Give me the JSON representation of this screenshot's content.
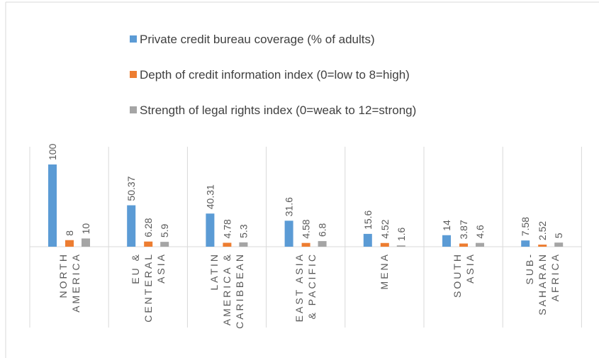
{
  "chart_data": {
    "type": "bar",
    "categories": [
      "NORTH AMERICA",
      "EU & CENTERAL ASIA",
      "LATIN AMERICA & CARIBBEAN",
      "EAST ASIA & PACIFIC",
      "MENA",
      "SOUTH ASIA",
      "SUB-SAHARAN AFRICA"
    ],
    "series": [
      {
        "name": "Private credit bureau coverage (% of adults)",
        "color": "#5b9bd5",
        "values": [
          100,
          50.37,
          40.31,
          31.6,
          15.6,
          14,
          7.58
        ]
      },
      {
        "name": "Depth of credit information index (0=low to 8=high)",
        "color": "#ed7d31",
        "values": [
          8,
          6.28,
          4.78,
          4.58,
          4.52,
          3.87,
          2.52
        ]
      },
      {
        "name": "Strength of legal rights index (0=weak to 12=strong)",
        "color": "#a5a5a5",
        "values": [
          10,
          5.9,
          5.3,
          6.8,
          1.6,
          4.6,
          5
        ]
      }
    ],
    "legend": "top"
  }
}
